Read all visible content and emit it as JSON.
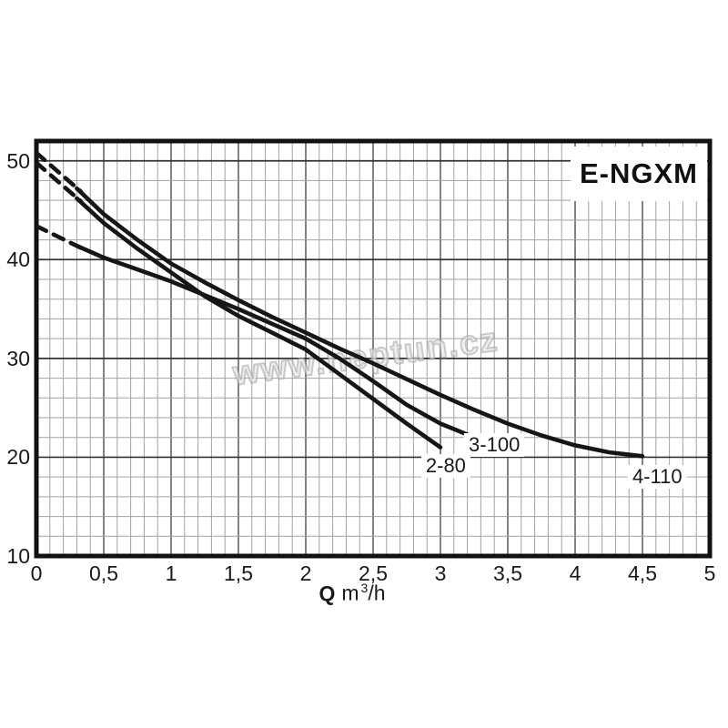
{
  "page": {
    "title": "E-NGXM"
  },
  "watermark": {
    "text": "www.neptun.cz"
  },
  "chart": {
    "axis": {
      "q": "Q",
      "unit": "m",
      "sup": "3",
      "per": "/h"
    }
  },
  "colors": {
    "background": "#ffffff",
    "curve": "#161616",
    "border": "#111111",
    "grid_minor": "#a3a3a3",
    "grid_major_v": "#5a5a5a",
    "grid_major_h": "#333333",
    "text": "#1a1a1a"
  },
  "chart_data": {
    "type": "line",
    "title": "E-NGXM",
    "xlabel": "Q m³/h",
    "ylabel": "",
    "xlim": [
      0,
      5
    ],
    "ylim": [
      10,
      52
    ],
    "x_major_step": 0.5,
    "x_minor_step": 0.1,
    "y_major_step": 10,
    "y_minor_step": 2,
    "grid": true,
    "legend_position": "inline-labels",
    "x_ticks": [
      {
        "v": 0,
        "label": "0"
      },
      {
        "v": 0.5,
        "label": "0,5"
      },
      {
        "v": 1,
        "label": "1"
      },
      {
        "v": 1.5,
        "label": "1,5"
      },
      {
        "v": 2,
        "label": "2"
      },
      {
        "v": 2.5,
        "label": "2,5"
      },
      {
        "v": 3,
        "label": "3"
      },
      {
        "v": 3.5,
        "label": "3,5"
      },
      {
        "v": 4,
        "label": "4"
      },
      {
        "v": 4.5,
        "label": "4,5"
      },
      {
        "v": 5,
        "label": "5"
      }
    ],
    "y_ticks": [
      {
        "v": 50,
        "label": "50"
      },
      {
        "v": 40,
        "label": "40"
      },
      {
        "v": 30,
        "label": "30"
      },
      {
        "v": 20,
        "label": "20"
      },
      {
        "v": 10,
        "label": "10"
      }
    ],
    "series": [
      {
        "name": "2-80",
        "label": "2-80",
        "label_center": [
          3.04,
          19.15
        ],
        "dashed_points": [
          [
            0,
            49.8
          ],
          [
            0.33,
            45.9
          ]
        ],
        "points": [
          [
            0.3,
            46.2
          ],
          [
            0.5,
            43.7
          ],
          [
            0.75,
            41.1
          ],
          [
            1,
            38.7
          ],
          [
            1.25,
            36.3
          ],
          [
            1.5,
            34.3
          ],
          [
            1.75,
            32.6
          ],
          [
            2,
            30.9
          ],
          [
            2.25,
            28.4
          ],
          [
            2.5,
            25.9
          ],
          [
            2.75,
            23.4
          ],
          [
            3,
            21
          ]
        ]
      },
      {
        "name": "3-100",
        "label": "3-100",
        "label_center": [
          3.4,
          21.2
        ],
        "dashed_points": [
          [
            0,
            43.4
          ],
          [
            0.33,
            41.2
          ]
        ],
        "points": [
          [
            0.3,
            41.4
          ],
          [
            0.5,
            40.2
          ],
          [
            0.75,
            39
          ],
          [
            1,
            37.8
          ],
          [
            1.25,
            36.4
          ],
          [
            1.5,
            35
          ],
          [
            1.75,
            33.5
          ],
          [
            2,
            32
          ],
          [
            2.25,
            30
          ],
          [
            2.5,
            27.7
          ],
          [
            2.75,
            25.3
          ],
          [
            3,
            23.4
          ],
          [
            3.2,
            22.3
          ]
        ]
      },
      {
        "name": "4-110",
        "label": "4-110",
        "label_center": [
          4.61,
          18.0
        ],
        "dashed_points": [
          [
            0,
            50.8
          ],
          [
            0.33,
            46.9
          ]
        ],
        "points": [
          [
            0.3,
            47.2
          ],
          [
            0.5,
            44.6
          ],
          [
            0.75,
            42
          ],
          [
            1,
            39.6
          ],
          [
            1.25,
            37.7
          ],
          [
            1.5,
            35.9
          ],
          [
            1.75,
            34.2
          ],
          [
            2,
            32.6
          ],
          [
            2.25,
            31
          ],
          [
            2.5,
            29.5
          ],
          [
            2.75,
            27.9
          ],
          [
            3,
            26.3
          ],
          [
            3.25,
            24.8
          ],
          [
            3.5,
            23.4
          ],
          [
            3.75,
            22.2
          ],
          [
            4,
            21.2
          ],
          [
            4.25,
            20.5
          ],
          [
            4.5,
            20.1
          ]
        ]
      }
    ]
  }
}
